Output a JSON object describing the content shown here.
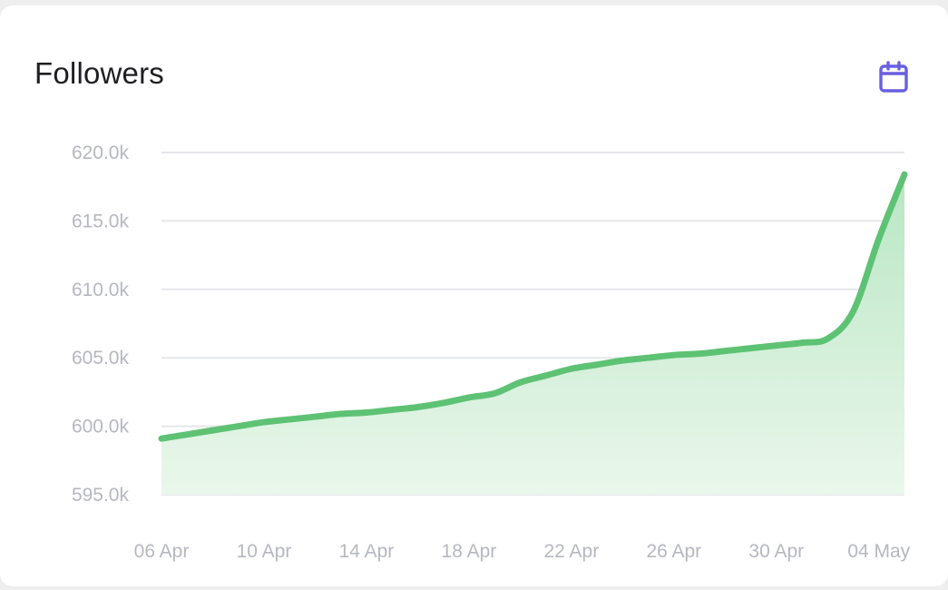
{
  "card": {
    "title": "Followers",
    "calendar_icon": "calendar-icon"
  },
  "colors": {
    "line": "#5ec274",
    "area_top": "#b9e6c3",
    "area_bottom": "#eaf7ec",
    "grid": "#e6e7ea",
    "tick_text": "#b6b8bf",
    "icon": "#6a5fe0",
    "title": "#1f1f23"
  },
  "chart_data": {
    "type": "area",
    "title": "Followers",
    "xlabel": "",
    "ylabel": "",
    "ylim": [
      595000,
      620000
    ],
    "y_ticks": [
      620000,
      615000,
      610000,
      605000,
      600000,
      595000
    ],
    "y_tick_labels": [
      "620.0k",
      "615.0k",
      "610.0k",
      "605.0k",
      "600.0k",
      "595.0k"
    ],
    "x_tick_labels": [
      "06 Apr",
      "10 Apr",
      "14 Apr",
      "18 Apr",
      "22 Apr",
      "26 Apr",
      "30 Apr",
      "04 May"
    ],
    "grid": true,
    "legend": "none",
    "x": [
      "06 Apr",
      "07 Apr",
      "08 Apr",
      "09 Apr",
      "10 Apr",
      "11 Apr",
      "12 Apr",
      "13 Apr",
      "14 Apr",
      "15 Apr",
      "16 Apr",
      "17 Apr",
      "18 Apr",
      "19 Apr",
      "20 Apr",
      "21 Apr",
      "22 Apr",
      "23 Apr",
      "24 Apr",
      "25 Apr",
      "26 Apr",
      "27 Apr",
      "28 Apr",
      "29 Apr",
      "30 Apr",
      "01 May",
      "02 May",
      "03 May",
      "04 May",
      "05 May"
    ],
    "series": [
      {
        "values": [
          599100,
          599400,
          599700,
          600000,
          600300,
          600500,
          600700,
          600900,
          601000,
          601200,
          601400,
          601700,
          602100,
          602400,
          603200,
          603700,
          604200,
          604500,
          604800,
          605000,
          605200,
          605300,
          605500,
          605700,
          605900,
          606100,
          606400,
          608400,
          613700,
          618400
        ]
      }
    ]
  }
}
